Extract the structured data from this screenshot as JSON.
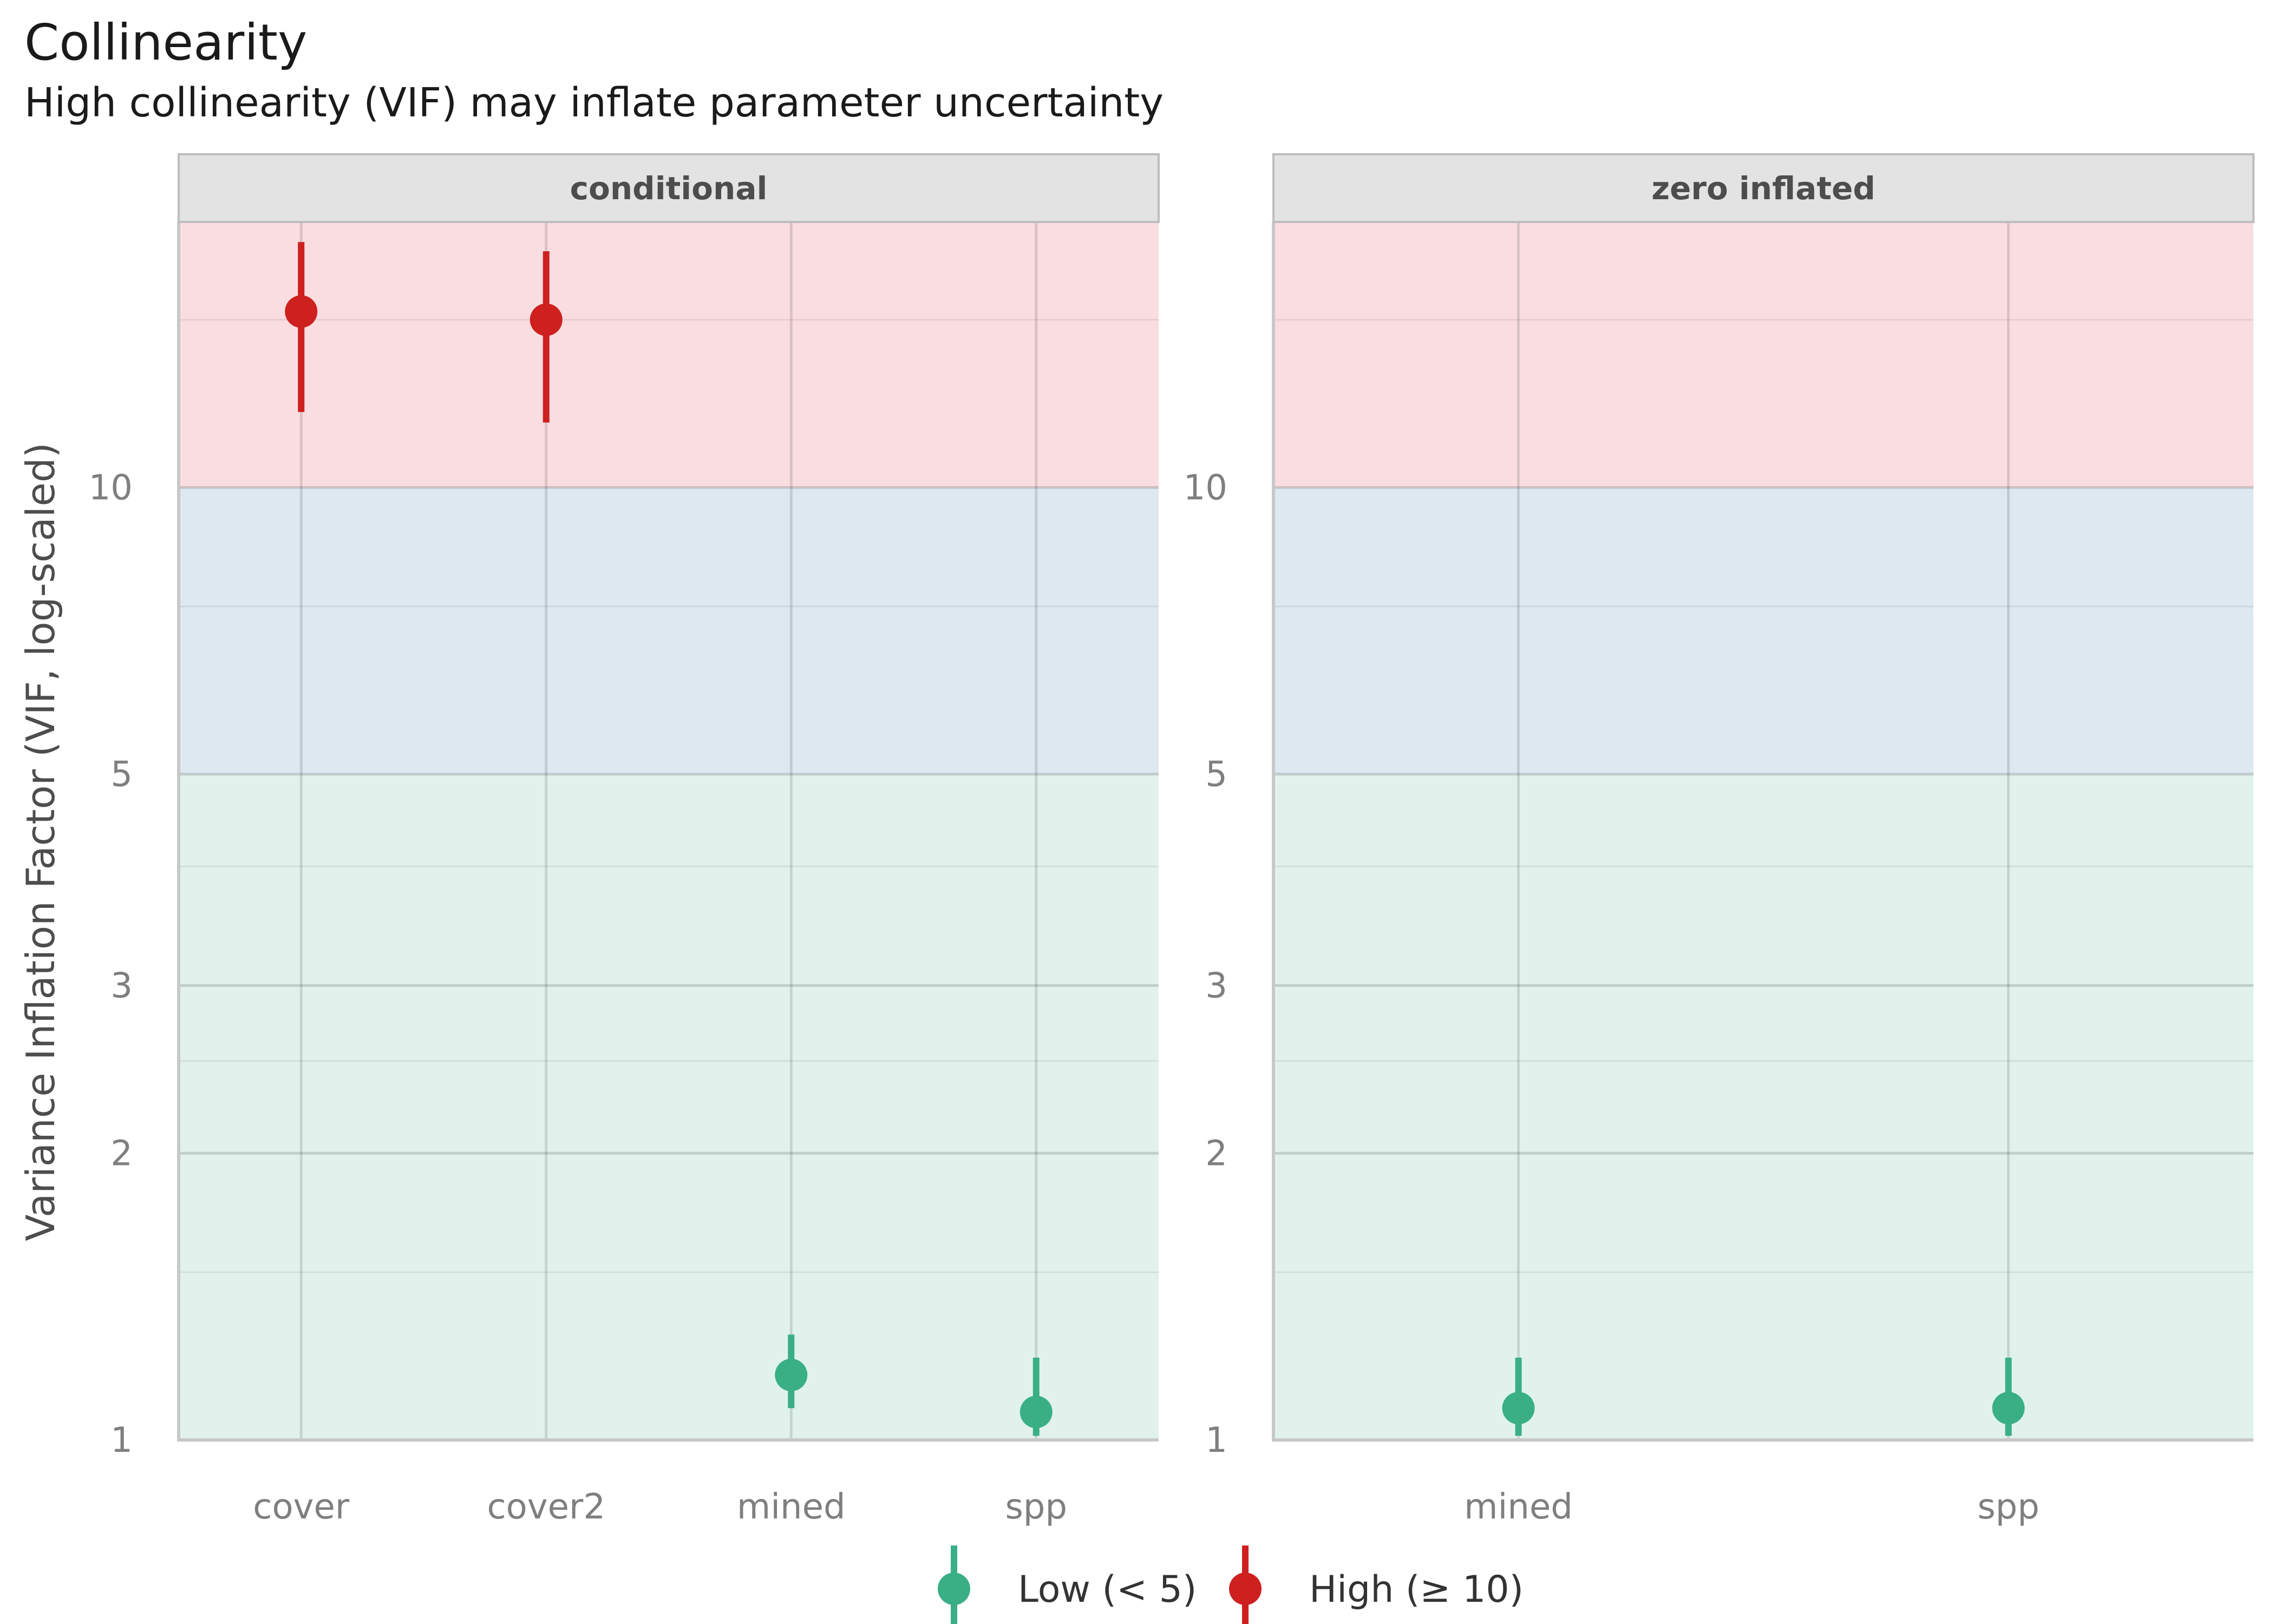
{
  "title": "Collinearity",
  "subtitle": "High collinearity (VIF) may inflate parameter uncertainty",
  "chart_data": {
    "type": "scatter",
    "title": "Collinearity",
    "subtitle": "High collinearity (VIF) may inflate parameter uncertainty",
    "xlabel": "",
    "ylabel": "Variance Inflation Factor (VIF, log-scaled)",
    "yscale": "log",
    "ylim": [
      1,
      19
    ],
    "yticks": [
      1,
      2,
      3,
      5,
      10
    ],
    "ytick_labels": [
      "1",
      "2",
      "3",
      "5",
      "10"
    ],
    "grid": true,
    "legend_position": "bottom",
    "bands": [
      {
        "from": 1,
        "to": 5,
        "color": "#e1f2ec"
      },
      {
        "from": 5,
        "to": 10,
        "color": "#dde8f0"
      },
      {
        "from": 10,
        "to": 19,
        "color": "#f9dde0"
      }
    ],
    "legend": [
      {
        "label": "Low (< 5)",
        "color": "#3aaf85"
      },
      {
        "label": "High (≥ 10)",
        "color": "#cd201f"
      }
    ],
    "panels": [
      {
        "name": "conditional",
        "categories": [
          "cover",
          "cover2",
          "mined",
          "spp"
        ],
        "points": [
          {
            "term": "cover",
            "vif": 15.3,
            "ci_low": 12.0,
            "ci_high": 18.1,
            "group": "High (≥ 10)"
          },
          {
            "term": "cover2",
            "vif": 15.0,
            "ci_low": 11.7,
            "ci_high": 17.7,
            "group": "High (≥ 10)"
          },
          {
            "term": "mined",
            "vif": 1.17,
            "ci_low": 1.08,
            "ci_high": 1.29,
            "group": "Low (< 5)"
          },
          {
            "term": "spp",
            "vif": 1.07,
            "ci_low": 1.01,
            "ci_high": 1.22,
            "group": "Low (< 5)"
          }
        ]
      },
      {
        "name": "zero inflated",
        "categories": [
          "mined",
          "spp"
        ],
        "points": [
          {
            "term": "mined",
            "vif": 1.08,
            "ci_low": 1.01,
            "ci_high": 1.22,
            "group": "Low (< 5)"
          },
          {
            "term": "spp",
            "vif": 1.08,
            "ci_low": 1.01,
            "ci_high": 1.22,
            "group": "Low (< 5)"
          }
        ]
      }
    ]
  }
}
